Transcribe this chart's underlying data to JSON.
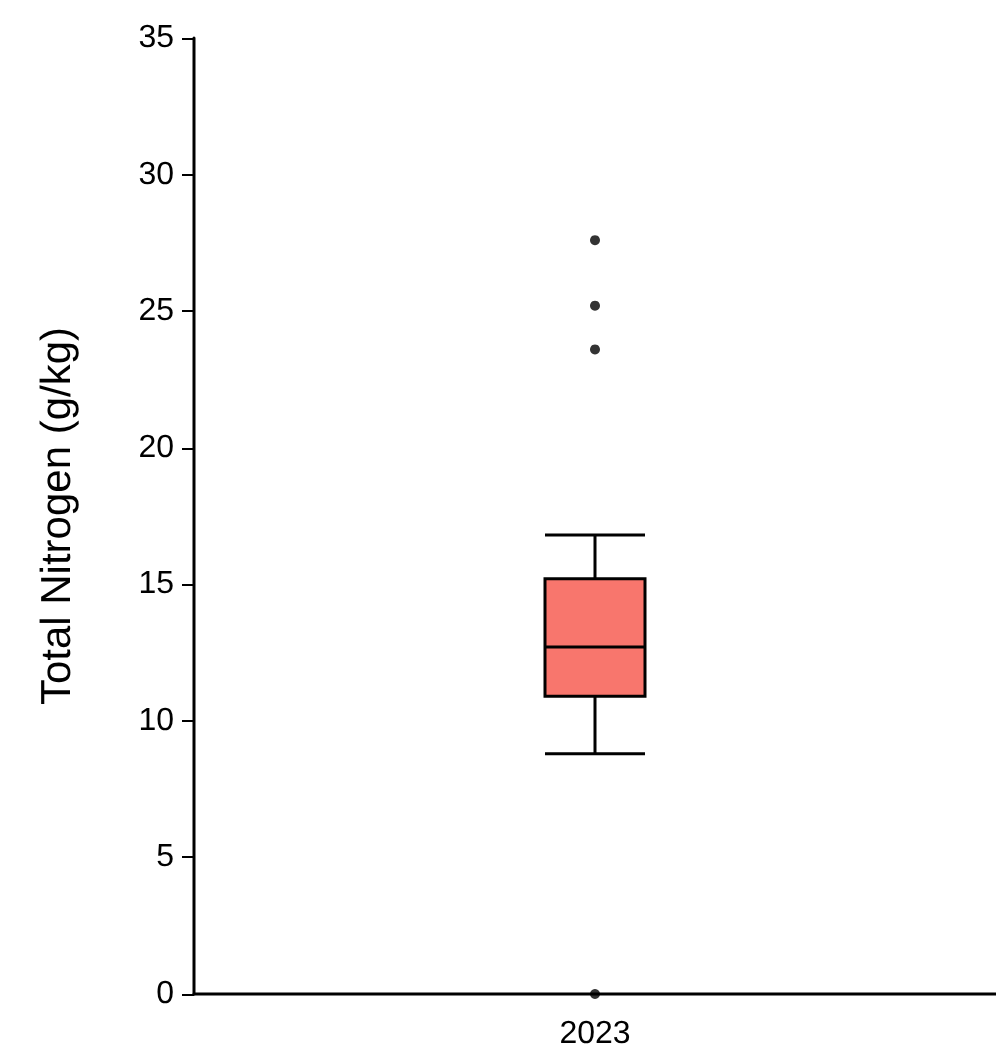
{
  "chart_data": {
    "type": "box",
    "ylabel": "Total Nitrogen (g/kg)",
    "categories": [
      "2023"
    ],
    "series": [
      {
        "color": "#f8766d",
        "boxes": [
          {
            "low": 8.8,
            "q1": 10.9,
            "median": 12.7,
            "q3": 15.2,
            "high": 16.8,
            "outliers": [
              0,
              23.6,
              25.2,
              27.6
            ]
          }
        ]
      }
    ],
    "ylim": [
      0,
      35
    ],
    "yticks": [
      0,
      5,
      10,
      15,
      20,
      25,
      30,
      35
    ],
    "grid": false
  }
}
